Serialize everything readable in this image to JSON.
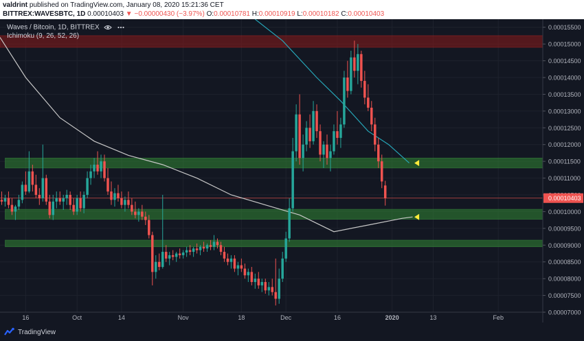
{
  "header": {
    "author": "valdrint",
    "published": " published on TradingView.com, January 08, 2020 15:21:36 CET",
    "symbol": "BITTREX:WAVESBTC, 1D",
    "last": "0.00010403",
    "change": "▼ −0.00000430 (−3.97%)",
    "open_label": "O:",
    "open": "0.00010781",
    "high_label": "H:",
    "high": "0.00010919",
    "low_label": "L:",
    "low": "0.00010182",
    "close_label": "C:",
    "close": "0.00010403"
  },
  "legend": {
    "title": "Waves / Bitcoin, 1D, BITTREX",
    "indicator": "Ichimoku (9, 26, 52, 26)"
  },
  "footer": {
    "brand": "TradingView"
  },
  "colors": {
    "background": "#131722",
    "up": "#26a69a",
    "down": "#ef5350",
    "support_zone": "#2e7d32",
    "resistance_zone": "#8b1a1a",
    "ma_long": "#c8c8c8",
    "ma_short": "#26a6b8",
    "arrow": "#ffeb3b",
    "price_tag": "#ef5350"
  },
  "chart_data": {
    "type": "candlestick",
    "price_axis": {
      "ticks": [
        "0.00015500",
        "0.00015000",
        "0.00014500",
        "0.00014000",
        "0.00013500",
        "0.00013000",
        "0.00012500",
        "0.00012000",
        "0.00011500",
        "0.00011000",
        "0.00010500",
        "0.00010000",
        "0.00009500",
        "0.00009000",
        "0.00008500",
        "0.00008000",
        "0.00007500",
        "0.00007000"
      ],
      "range": [
        7e-05,
        0.0001574
      ]
    },
    "time_axis": {
      "labels": [
        {
          "label": "16",
          "day": 0
        },
        {
          "label": "Oct",
          "day": 15
        },
        {
          "label": "14",
          "day": 28
        },
        {
          "label": "Nov",
          "day": 46
        },
        {
          "label": "18",
          "day": 63
        },
        {
          "label": "Dec",
          "day": 76
        },
        {
          "label": "16",
          "day": 91
        },
        {
          "label": "2020",
          "day": 107
        },
        {
          "label": "13",
          "day": 119
        },
        {
          "label": "Feb",
          "day": 138
        }
      ],
      "range": [
        -7.5,
        151
      ]
    },
    "last_price_label": "0.00010403",
    "last_price": 0.00010403,
    "zones": [
      {
        "kind": "resistance",
        "low": 0.000149,
        "high": 0.0001525
      },
      {
        "kind": "support",
        "low": 0.000113,
        "high": 0.000116
      },
      {
        "kind": "support",
        "low": 9.77e-05,
        "high": 0.0001007
      },
      {
        "kind": "support",
        "low": 8.95e-05,
        "high": 9.15e-05
      }
    ],
    "arrows": [
      {
        "day": 113.5,
        "price": 0.0001145
      },
      {
        "day": 113.5,
        "price": 9.84e-05
      }
    ],
    "ma_long": [
      {
        "day": -7.5,
        "price": 0.000152
      },
      {
        "day": 0,
        "price": 0.00014
      },
      {
        "day": 10,
        "price": 0.000128
      },
      {
        "day": 20,
        "price": 0.000121
      },
      {
        "day": 30,
        "price": 0.0001168
      },
      {
        "day": 40,
        "price": 0.000114
      },
      {
        "day": 50,
        "price": 0.00011
      },
      {
        "day": 60,
        "price": 0.000105
      },
      {
        "day": 70,
        "price": 0.000102
      },
      {
        "day": 80,
        "price": 9.9e-05
      },
      {
        "day": 90,
        "price": 9.4e-05
      },
      {
        "day": 100,
        "price": 9.6e-05
      },
      {
        "day": 110,
        "price": 9.8e-05
      },
      {
        "day": 113,
        "price": 9.84e-05
      }
    ],
    "ma_short": [
      {
        "day": 67,
        "price": 0.0001574
      },
      {
        "day": 75,
        "price": 0.000151
      },
      {
        "day": 85,
        "price": 0.00014
      },
      {
        "day": 92,
        "price": 0.000133
      },
      {
        "day": 100,
        "price": 0.000124
      },
      {
        "day": 106,
        "price": 0.00012
      },
      {
        "day": 112,
        "price": 0.0001145
      }
    ],
    "candles": [
      {
        "day": -7,
        "o": 0.0001035,
        "h": 0.000106,
        "l": 0.000102,
        "c": 0.000103
      },
      {
        "day": -6,
        "o": 0.000103,
        "h": 0.000105,
        "l": 0.0001015,
        "c": 0.000104
      },
      {
        "day": -5,
        "o": 0.000104,
        "h": 0.000106,
        "l": 0.000101,
        "c": 0.000102
      },
      {
        "day": -4,
        "o": 0.000102,
        "h": 0.000104,
        "l": 9.9e-05,
        "c": 0.0001
      },
      {
        "day": -3,
        "o": 0.0001,
        "h": 0.000102,
        "l": 9.75e-05,
        "c": 0.0001015
      },
      {
        "day": -2,
        "o": 0.0001015,
        "h": 0.000105,
        "l": 0.0001005,
        "c": 0.0001035
      },
      {
        "day": -1,
        "o": 0.0001035,
        "h": 0.000109,
        "l": 0.0001025,
        "c": 0.000108
      },
      {
        "day": 0,
        "o": 0.000108,
        "h": 0.000112,
        "l": 0.000105,
        "c": 0.000106
      },
      {
        "day": 1,
        "o": 0.000106,
        "h": 0.000118,
        "l": 0.0001055,
        "c": 0.000112
      },
      {
        "day": 2,
        "o": 0.000112,
        "h": 0.000114,
        "l": 0.000106,
        "c": 0.000108
      },
      {
        "day": 3,
        "o": 0.000108,
        "h": 0.000111,
        "l": 0.000104,
        "c": 0.000105
      },
      {
        "day": 4,
        "o": 0.000105,
        "h": 0.000107,
        "l": 0.000102,
        "c": 0.000104
      },
      {
        "day": 5,
        "o": 0.000104,
        "h": 0.00012,
        "l": 0.000103,
        "c": 0.00011
      },
      {
        "day": 6,
        "o": 0.00011,
        "h": 0.000111,
        "l": 0.000102,
        "c": 0.000103
      },
      {
        "day": 7,
        "o": 0.000103,
        "h": 0.000105,
        "l": 9.8e-05,
        "c": 9.9e-05
      },
      {
        "day": 8,
        "o": 9.9e-05,
        "h": 0.000105,
        "l": 9.75e-05,
        "c": 0.000103
      },
      {
        "day": 9,
        "o": 0.000103,
        "h": 0.000106,
        "l": 0.000101,
        "c": 0.000104
      },
      {
        "day": 10,
        "o": 0.000104,
        "h": 0.000106,
        "l": 0.000102,
        "c": 0.000103
      },
      {
        "day": 11,
        "o": 0.000103,
        "h": 0.000105,
        "l": 0.0001005,
        "c": 0.000104
      },
      {
        "day": 12,
        "o": 0.000104,
        "h": 0.0001065,
        "l": 0.000102,
        "c": 0.000105
      },
      {
        "day": 13,
        "o": 0.000105,
        "h": 0.000106,
        "l": 0.0001005,
        "c": 0.000102
      },
      {
        "day": 14,
        "o": 0.000102,
        "h": 0.000104,
        "l": 9.9e-05,
        "c": 0.0001
      },
      {
        "day": 15,
        "o": 0.0001,
        "h": 0.000105,
        "l": 9.9e-05,
        "c": 0.000104
      },
      {
        "day": 16,
        "o": 0.000104,
        "h": 0.000106,
        "l": 0.0001,
        "c": 0.000101
      },
      {
        "day": 17,
        "o": 0.000101,
        "h": 0.000106,
        "l": 9.95e-05,
        "c": 0.000105
      },
      {
        "day": 18,
        "o": 0.000105,
        "h": 0.000112,
        "l": 0.000104,
        "c": 0.00011
      },
      {
        "day": 19,
        "o": 0.00011,
        "h": 0.000114,
        "l": 0.000108,
        "c": 0.000112
      },
      {
        "day": 20,
        "o": 0.000112,
        "h": 0.000116,
        "l": 0.00011,
        "c": 0.000114
      },
      {
        "day": 21,
        "o": 0.000114,
        "h": 0.000118,
        "l": 0.000111,
        "c": 0.000112
      },
      {
        "day": 22,
        "o": 0.000112,
        "h": 0.000117,
        "l": 0.00011,
        "c": 0.000115
      },
      {
        "day": 23,
        "o": 0.000115,
        "h": 0.000117,
        "l": 0.000109,
        "c": 0.00011
      },
      {
        "day": 24,
        "o": 0.00011,
        "h": 0.000113,
        "l": 0.000105,
        "c": 0.000106
      },
      {
        "day": 25,
        "o": 0.000106,
        "h": 0.000109,
        "l": 0.000102,
        "c": 0.0001035
      },
      {
        "day": 26,
        "o": 0.0001035,
        "h": 0.000107,
        "l": 0.0001015,
        "c": 0.0001055
      },
      {
        "day": 27,
        "o": 0.0001055,
        "h": 0.000108,
        "l": 0.000103,
        "c": 0.000104
      },
      {
        "day": 28,
        "o": 0.000104,
        "h": 0.000106,
        "l": 0.000101,
        "c": 0.000102
      },
      {
        "day": 29,
        "o": 0.000102,
        "h": 0.0001045,
        "l": 0.0001,
        "c": 0.0001035
      },
      {
        "day": 30,
        "o": 0.0001035,
        "h": 0.000106,
        "l": 0.000101,
        "c": 0.000102
      },
      {
        "day": 31,
        "o": 0.000102,
        "h": 0.000104,
        "l": 9.9e-05,
        "c": 0.0001
      },
      {
        "day": 32,
        "o": 0.0001,
        "h": 0.000103,
        "l": 9.8e-05,
        "c": 9.9e-05
      },
      {
        "day": 33,
        "o": 9.9e-05,
        "h": 0.000101,
        "l": 9.7e-05,
        "c": 0.0001
      },
      {
        "day": 34,
        "o": 0.0001,
        "h": 0.000102,
        "l": 9.75e-05,
        "c": 9.85e-05
      },
      {
        "day": 35,
        "o": 9.85e-05,
        "h": 0.0001,
        "l": 9.6e-05,
        "c": 9.75e-05
      },
      {
        "day": 36,
        "o": 9.75e-05,
        "h": 9.9e-05,
        "l": 9.2e-05,
        "c": 9.3e-05
      },
      {
        "day": 37,
        "o": 9.3e-05,
        "h": 9.4e-05,
        "l": 7.8e-05,
        "c": 8.2e-05
      },
      {
        "day": 38,
        "o": 8.2e-05,
        "h": 8.7e-05,
        "l": 8e-05,
        "c": 8.5e-05
      },
      {
        "day": 39,
        "o": 8.5e-05,
        "h": 8.75e-05,
        "l": 8.25e-05,
        "c": 8.35e-05
      },
      {
        "day": 40,
        "o": 8.35e-05,
        "h": 0.000105,
        "l": 8.3e-05,
        "c": 8.8e-05
      },
      {
        "day": 41,
        "o": 8.8e-05,
        "h": 9e-05,
        "l": 8.5e-05,
        "c": 8.6e-05
      },
      {
        "day": 42,
        "o": 8.6e-05,
        "h": 8.8e-05,
        "l": 8.4e-05,
        "c": 8.7e-05
      },
      {
        "day": 43,
        "o": 8.7e-05,
        "h": 8.85e-05,
        "l": 8.55e-05,
        "c": 8.65e-05
      },
      {
        "day": 44,
        "o": 8.65e-05,
        "h": 8.8e-05,
        "l": 8.5e-05,
        "c": 8.75e-05
      },
      {
        "day": 45,
        "o": 8.75e-05,
        "h": 8.9e-05,
        "l": 8.6e-05,
        "c": 8.7e-05
      },
      {
        "day": 46,
        "o": 8.7e-05,
        "h": 8.85e-05,
        "l": 8.6e-05,
        "c": 8.78e-05
      },
      {
        "day": 47,
        "o": 8.78e-05,
        "h": 8.95e-05,
        "l": 8.65e-05,
        "c": 8.85e-05
      },
      {
        "day": 48,
        "o": 8.85e-05,
        "h": 9e-05,
        "l": 8.7e-05,
        "c": 8.8e-05
      },
      {
        "day": 49,
        "o": 8.8e-05,
        "h": 8.95e-05,
        "l": 8.65e-05,
        "c": 8.9e-05
      },
      {
        "day": 50,
        "o": 8.9e-05,
        "h": 9.05e-05,
        "l": 8.75e-05,
        "c": 8.85e-05
      },
      {
        "day": 51,
        "o": 8.85e-05,
        "h": 9e-05,
        "l": 8.7e-05,
        "c": 8.95e-05
      },
      {
        "day": 52,
        "o": 8.95e-05,
        "h": 9.1e-05,
        "l": 8.8e-05,
        "c": 8.9e-05
      },
      {
        "day": 53,
        "o": 8.9e-05,
        "h": 9.05e-05,
        "l": 8.8e-05,
        "c": 9e-05
      },
      {
        "day": 54,
        "o": 9e-05,
        "h": 9.15e-05,
        "l": 8.85e-05,
        "c": 8.95e-05
      },
      {
        "day": 55,
        "o": 8.95e-05,
        "h": 9.3e-05,
        "l": 8.85e-05,
        "c": 9.1e-05
      },
      {
        "day": 56,
        "o": 9.1e-05,
        "h": 9.2e-05,
        "l": 8.9e-05,
        "c": 9e-05
      },
      {
        "day": 57,
        "o": 9e-05,
        "h": 9.1e-05,
        "l": 8.7e-05,
        "c": 8.8e-05
      },
      {
        "day": 58,
        "o": 8.8e-05,
        "h": 8.95e-05,
        "l": 8.5e-05,
        "c": 8.6e-05
      },
      {
        "day": 59,
        "o": 8.6e-05,
        "h": 8.75e-05,
        "l": 8.4e-05,
        "c": 8.5e-05
      },
      {
        "day": 60,
        "o": 8.5e-05,
        "h": 8.7e-05,
        "l": 8.3e-05,
        "c": 8.6e-05
      },
      {
        "day": 61,
        "o": 8.6e-05,
        "h": 8.7e-05,
        "l": 8.2e-05,
        "c": 8.3e-05
      },
      {
        "day": 62,
        "o": 8.3e-05,
        "h": 8.5e-05,
        "l": 8.1e-05,
        "c": 8.4e-05
      },
      {
        "day": 63,
        "o": 8.4e-05,
        "h": 8.6e-05,
        "l": 8.2e-05,
        "c": 8.3e-05
      },
      {
        "day": 64,
        "o": 8.3e-05,
        "h": 8.45e-05,
        "l": 8e-05,
        "c": 8.1e-05
      },
      {
        "day": 65,
        "o": 8.1e-05,
        "h": 8.3e-05,
        "l": 7.9e-05,
        "c": 8.2e-05
      },
      {
        "day": 66,
        "o": 8.2e-05,
        "h": 8.35e-05,
        "l": 7.8e-05,
        "c": 7.9e-05
      },
      {
        "day": 67,
        "o": 7.9e-05,
        "h": 8.15e-05,
        "l": 7.7e-05,
        "c": 8e-05
      },
      {
        "day": 68,
        "o": 8e-05,
        "h": 8.2e-05,
        "l": 7.7e-05,
        "c": 7.8e-05
      },
      {
        "day": 69,
        "o": 7.8e-05,
        "h": 8e-05,
        "l": 7.6e-05,
        "c": 7.9e-05
      },
      {
        "day": 70,
        "o": 7.9e-05,
        "h": 8e-05,
        "l": 7.55e-05,
        "c": 7.65e-05
      },
      {
        "day": 71,
        "o": 7.65e-05,
        "h": 7.9e-05,
        "l": 7.5e-05,
        "c": 7.75e-05
      },
      {
        "day": 72,
        "o": 7.75e-05,
        "h": 8e-05,
        "l": 7.5e-05,
        "c": 7.6e-05
      },
      {
        "day": 73,
        "o": 7.6e-05,
        "h": 8.6e-05,
        "l": 7.2e-05,
        "c": 7.4e-05
      },
      {
        "day": 74,
        "o": 7.4e-05,
        "h": 8.3e-05,
        "l": 7.25e-05,
        "c": 8e-05
      },
      {
        "day": 75,
        "o": 8e-05,
        "h": 8.8e-05,
        "l": 7.9e-05,
        "c": 8.6e-05
      },
      {
        "day": 76,
        "o": 8.6e-05,
        "h": 9.4e-05,
        "l": 8.5e-05,
        "c": 9.2e-05
      },
      {
        "day": 77,
        "o": 9.2e-05,
        "h": 0.000104,
        "l": 9.1e-05,
        "c": 0.000101
      },
      {
        "day": 78,
        "o": 0.000101,
        "h": 0.000122,
        "l": 0.0001,
        "c": 0.000118
      },
      {
        "day": 79,
        "o": 0.000118,
        "h": 0.000132,
        "l": 0.000115,
        "c": 0.000129
      },
      {
        "day": 80,
        "o": 0.000129,
        "h": 0.000135,
        "l": 0.000114,
        "c": 0.000116
      },
      {
        "day": 81,
        "o": 0.000116,
        "h": 0.000123,
        "l": 0.000112,
        "c": 0.00012
      },
      {
        "day": 82,
        "o": 0.00012,
        "h": 0.000127,
        "l": 0.000118,
        "c": 0.000125
      },
      {
        "day": 83,
        "o": 0.000125,
        "h": 0.000129,
        "l": 0.000119,
        "c": 0.000121
      },
      {
        "day": 84,
        "o": 0.000121,
        "h": 0.000133,
        "l": 0.00012,
        "c": 0.00013
      },
      {
        "day": 85,
        "o": 0.00013,
        "h": 0.000132,
        "l": 0.000122,
        "c": 0.000124
      },
      {
        "day": 86,
        "o": 0.000124,
        "h": 0.000126,
        "l": 0.000115,
        "c": 0.000117
      },
      {
        "day": 87,
        "o": 0.000117,
        "h": 0.000121,
        "l": 0.000113,
        "c": 0.00012
      },
      {
        "day": 88,
        "o": 0.00012,
        "h": 0.000123,
        "l": 0.000114,
        "c": 0.000116
      },
      {
        "day": 89,
        "o": 0.000116,
        "h": 0.00012,
        "l": 0.000112,
        "c": 0.000118
      },
      {
        "day": 90,
        "o": 0.000118,
        "h": 0.000126,
        "l": 0.000117,
        "c": 0.000124
      },
      {
        "day": 91,
        "o": 0.000124,
        "h": 0.00013,
        "l": 0.00012,
        "c": 0.000122
      },
      {
        "day": 92,
        "o": 0.000122,
        "h": 0.000128,
        "l": 0.000119,
        "c": 0.000126
      },
      {
        "day": 93,
        "o": 0.000126,
        "h": 0.000142,
        "l": 0.000125,
        "c": 0.00014
      },
      {
        "day": 94,
        "o": 0.00014,
        "h": 0.000145,
        "l": 0.000134,
        "c": 0.000136
      },
      {
        "day": 95,
        "o": 0.000136,
        "h": 0.000148,
        "l": 0.000135,
        "c": 0.000146
      },
      {
        "day": 96,
        "o": 0.000146,
        "h": 0.000151,
        "l": 0.00014,
        "c": 0.000142
      },
      {
        "day": 97,
        "o": 0.000142,
        "h": 0.00015,
        "l": 0.000138,
        "c": 0.000147
      },
      {
        "day": 98,
        "o": 0.000147,
        "h": 0.000148,
        "l": 0.000137,
        "c": 0.000139
      },
      {
        "day": 99,
        "o": 0.000139,
        "h": 0.000142,
        "l": 0.000132,
        "c": 0.000134
      },
      {
        "day": 100,
        "o": 0.000134,
        "h": 0.000138,
        "l": 0.00013,
        "c": 0.000131
      },
      {
        "day": 101,
        "o": 0.000131,
        "h": 0.000133,
        "l": 0.000124,
        "c": 0.000126
      },
      {
        "day": 102,
        "o": 0.000126,
        "h": 0.000128,
        "l": 0.000118,
        "c": 0.00012
      },
      {
        "day": 103,
        "o": 0.00012,
        "h": 0.000122,
        "l": 0.000113,
        "c": 0.000115
      },
      {
        "day": 104,
        "o": 0.000115,
        "h": 0.000117,
        "l": 0.000107,
        "c": 0.000109
      },
      {
        "day": 105,
        "o": 0.0001078,
        "h": 0.0001092,
        "l": 0.0001018,
        "c": 0.000104
      }
    ]
  }
}
